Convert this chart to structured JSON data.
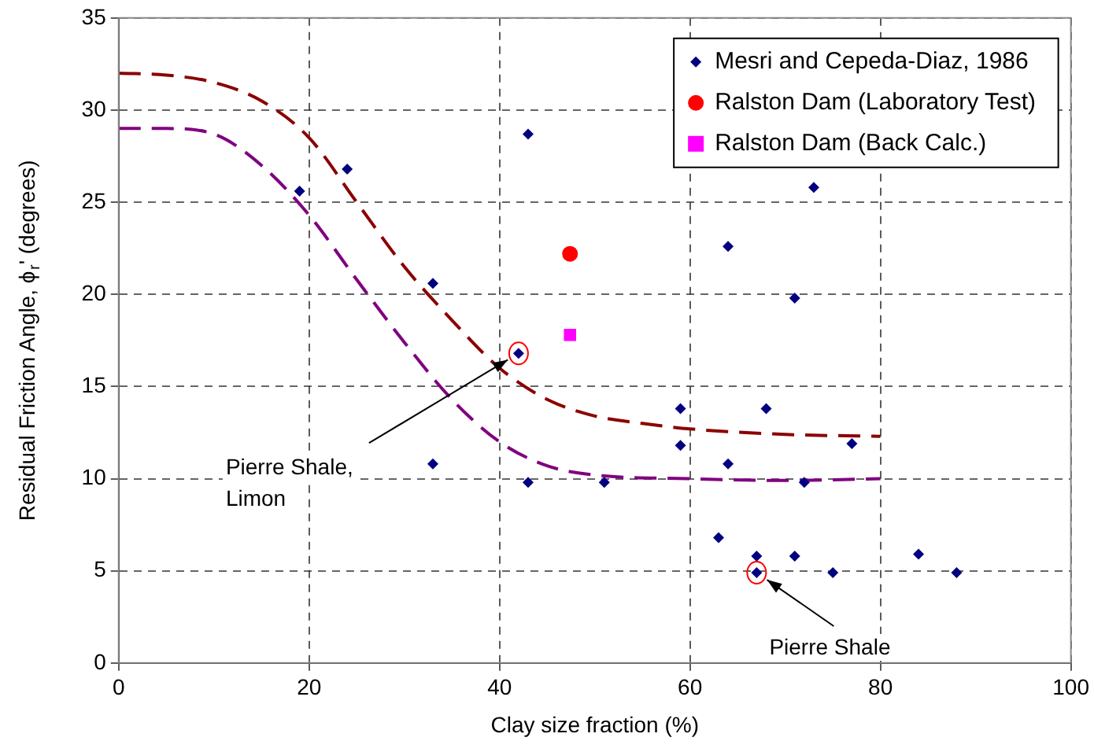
{
  "chart_data": {
    "type": "scatter",
    "xlabel": "Clay size fraction (%)",
    "ylabel": "Residual Friction Angle, ϕ$_{r}$' (degrees)",
    "xlim": [
      0,
      100
    ],
    "xticks": [
      0,
      20,
      40,
      60,
      80,
      100
    ],
    "ylim": [
      0,
      35
    ],
    "yticks": [
      0,
      5,
      10,
      15,
      20,
      25,
      30,
      35
    ],
    "grid": true,
    "legend": "top right",
    "series": [
      {
        "name": "Mesri and Cepeda-Diaz, 1986",
        "type": "scatter",
        "color": "#000080",
        "marker": "diamond",
        "x": [
          19,
          24,
          33,
          33,
          42,
          43,
          43,
          51,
          59,
          59,
          63,
          64,
          64,
          67,
          67,
          68,
          71,
          71,
          72,
          73,
          75,
          77,
          84,
          88
        ],
        "values": [
          25.6,
          26.8,
          20.6,
          10.8,
          16.8,
          28.7,
          9.8,
          9.8,
          13.8,
          11.8,
          6.8,
          22.6,
          10.8,
          5.8,
          4.9,
          13.8,
          19.8,
          5.8,
          9.8,
          25.8,
          4.9,
          11.9,
          5.9,
          4.9
        ]
      },
      {
        "name": "Ralston Dam (Laboratory Test)",
        "type": "scatter",
        "color": "#ff0000",
        "marker": "circle",
        "x": [
          47.4
        ],
        "values": [
          22.2
        ]
      },
      {
        "name": "Ralston Dam (Back Calc.)",
        "type": "scatter",
        "color": "#ff00ff",
        "marker": "square",
        "x": [
          47.4
        ],
        "values": [
          17.8
        ]
      },
      {
        "type": "line",
        "color": "#8b0000",
        "marker": "none",
        "line_style": "dashed",
        "x": [
          0,
          5,
          10,
          15,
          20,
          25,
          30,
          35,
          40,
          45,
          50,
          55,
          60,
          70,
          80
        ],
        "values": [
          32,
          31.9,
          31.5,
          30.5,
          28.5,
          25,
          21.5,
          18.6,
          16,
          14.3,
          13.4,
          13,
          12.7,
          12.4,
          12.3
        ]
      },
      {
        "type": "line",
        "color": "#800080",
        "marker": "none",
        "line_style": "dashed",
        "x": [
          0,
          5,
          10,
          15,
          20,
          25,
          30,
          35,
          40,
          45,
          50,
          60,
          70,
          80
        ],
        "values": [
          29,
          29,
          28.7,
          27,
          24.3,
          20.8,
          17.4,
          14.3,
          12,
          10.7,
          10.2,
          10,
          9.9,
          10
        ]
      }
    ],
    "annotations": [
      {
        "text": "Pierre Shale,\nLimon",
        "x": 42,
        "y": 16.8
      },
      {
        "text": "Pierre Shale",
        "x": 67,
        "y": 4.9
      }
    ]
  }
}
